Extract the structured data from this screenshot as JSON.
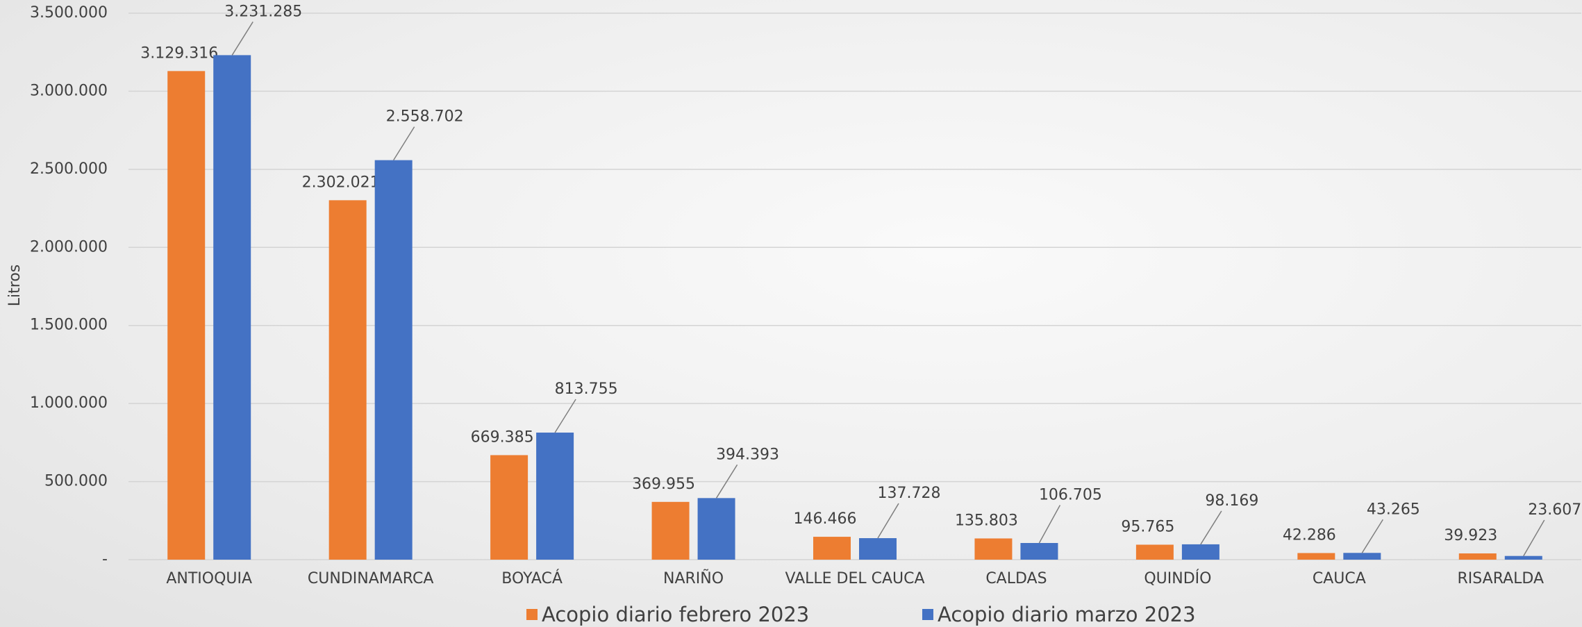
{
  "chart_data": {
    "type": "bar",
    "y_label": "Litros",
    "categories": [
      "ANTIOQUIA",
      "CUNDINAMARCA",
      "BOYACÁ",
      "NARIÑO",
      "VALLE DEL CAUCA",
      "CALDAS",
      "QUINDÍO",
      "CAUCA",
      "RISARALDA"
    ],
    "series": [
      {
        "name": "Acopio diario febrero 2023",
        "color": "#ed7d31",
        "values": [
          3129316,
          2302021,
          669385,
          369955,
          146466,
          135803,
          95765,
          42286,
          39923
        ],
        "value_labels": [
          "3.129.316",
          "2.302.021",
          "669.385",
          "369.955",
          "146.466",
          "135.803",
          "95.765",
          "42.286",
          "39.923"
        ]
      },
      {
        "name": "Acopio diario marzo 2023",
        "color": "#4472c4",
        "values": [
          3231285,
          2558702,
          813755,
          394393,
          137728,
          106705,
          98169,
          43265,
          23607
        ],
        "value_labels": [
          "3.231.285",
          "2.558.702",
          "813.755",
          "394.393",
          "137.728",
          "106.705",
          "98.169",
          "43.265",
          "23.607"
        ]
      }
    ],
    "ylim": [
      0,
      3500000
    ],
    "yticks": [
      {
        "value": 0,
        "label": "-"
      },
      {
        "value": 500000,
        "label": "500.000"
      },
      {
        "value": 1000000,
        "label": "1.000.000"
      },
      {
        "value": 1500000,
        "label": "1.500.000"
      },
      {
        "value": 2000000,
        "label": "2.000.000"
      },
      {
        "value": 2500000,
        "label": "2.500.000"
      },
      {
        "value": 3000000,
        "label": "3.000.000"
      },
      {
        "value": 3500000,
        "label": "3.500.000"
      }
    ],
    "grid": true,
    "legend": "bottom"
  }
}
